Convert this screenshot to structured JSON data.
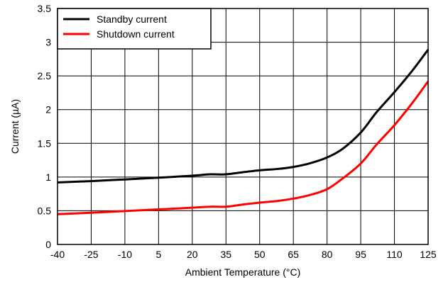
{
  "chart_data": {
    "type": "line",
    "xlabel": "Ambient Temperature (°C)",
    "ylabel": "Current (µA)",
    "xlim": [
      -40,
      125
    ],
    "ylim": [
      0,
      3.5
    ],
    "x_ticks": [
      -40,
      -25,
      -10,
      5,
      20,
      35,
      50,
      65,
      80,
      95,
      110,
      125
    ],
    "y_ticks": [
      0,
      0.5,
      1,
      1.5,
      2,
      2.5,
      3,
      3.5
    ],
    "y_tick_labels": [
      "0",
      "0.5",
      "1",
      "1.5",
      "2",
      "2.5",
      "3",
      "3.5"
    ],
    "grid": true,
    "legend_position": "top-left",
    "series": [
      {
        "name": "Standby current",
        "color": "#000000",
        "points": [
          [
            -40,
            0.92
          ],
          [
            -25,
            0.94
          ],
          [
            -10,
            0.965
          ],
          [
            5,
            0.99
          ],
          [
            20,
            1.02
          ],
          [
            28,
            1.04
          ],
          [
            35,
            1.04
          ],
          [
            42,
            1.07
          ],
          [
            50,
            1.1
          ],
          [
            58,
            1.12
          ],
          [
            65,
            1.15
          ],
          [
            72,
            1.2
          ],
          [
            80,
            1.29
          ],
          [
            87,
            1.42
          ],
          [
            95,
            1.66
          ],
          [
            102,
            1.96
          ],
          [
            110,
            2.26
          ],
          [
            118,
            2.58
          ],
          [
            125,
            2.89
          ]
        ]
      },
      {
        "name": "Shutdown current",
        "color": "#ff0000",
        "points": [
          [
            -40,
            0.45
          ],
          [
            -25,
            0.47
          ],
          [
            -10,
            0.495
          ],
          [
            5,
            0.52
          ],
          [
            20,
            0.545
          ],
          [
            28,
            0.56
          ],
          [
            35,
            0.56
          ],
          [
            42,
            0.59
          ],
          [
            50,
            0.62
          ],
          [
            58,
            0.645
          ],
          [
            65,
            0.68
          ],
          [
            72,
            0.73
          ],
          [
            80,
            0.82
          ],
          [
            87,
            0.98
          ],
          [
            95,
            1.2
          ],
          [
            102,
            1.48
          ],
          [
            110,
            1.77
          ],
          [
            118,
            2.1
          ],
          [
            125,
            2.42
          ]
        ]
      }
    ]
  }
}
